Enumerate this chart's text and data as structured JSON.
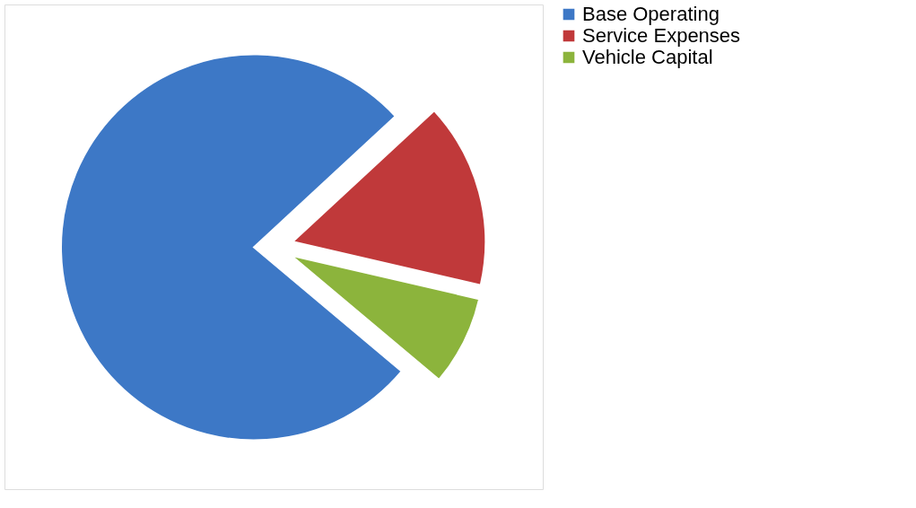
{
  "chart_data": {
    "type": "pie",
    "categories": [
      "Base Operating",
      "Service Expenses",
      "Vehicle Capital"
    ],
    "values": [
      77,
      15.5,
      7.5
    ],
    "colors": [
      "#3d78c6",
      "#c0393a",
      "#8cb43c"
    ],
    "legend": "right"
  }
}
